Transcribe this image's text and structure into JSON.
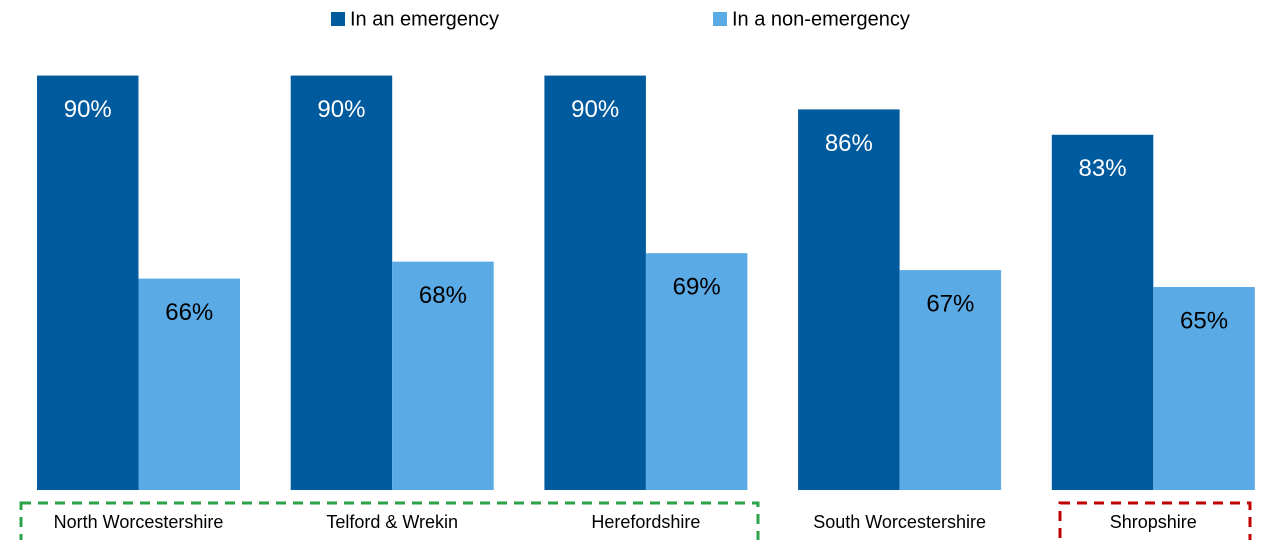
{
  "chart_data": {
    "type": "bar",
    "categories": [
      "North Worcestershire",
      "Telford & Wrekin",
      "Herefordshire",
      "South Worcestershire",
      "Shropshire"
    ],
    "series": [
      {
        "name": "In an emergency",
        "color": "#005a9e",
        "values": [
          90,
          90,
          90,
          86,
          83
        ],
        "value_labels": [
          "90%",
          "90%",
          "90%",
          "86%",
          "83%"
        ]
      },
      {
        "name": "In a non-emergency",
        "color": "#5aaae6",
        "values": [
          66,
          68,
          69,
          67,
          65
        ],
        "value_labels": [
          "66%",
          "68%",
          "69%",
          "67%",
          "65%"
        ]
      }
    ],
    "ylim": [
      41,
      100
    ],
    "legend": "top"
  }
}
